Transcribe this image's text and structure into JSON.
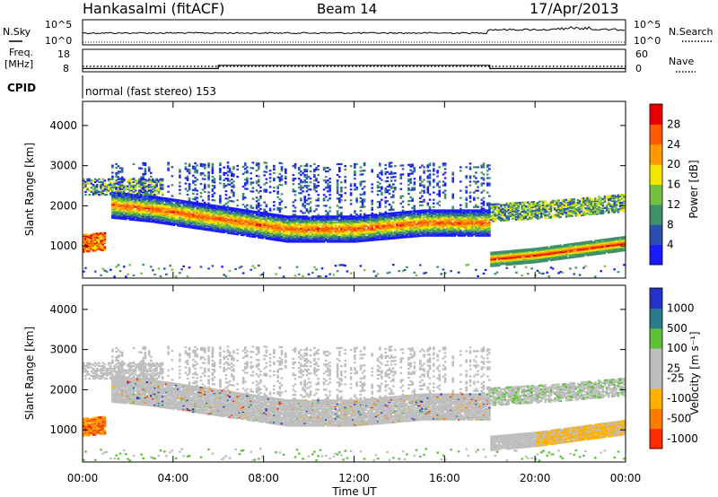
{
  "header": {
    "station": "Hankasalmi (fitACF)",
    "beam": "Beam 14",
    "date": "17/Apr/2013"
  },
  "noise_panel": {
    "left_label": "N.Sky",
    "right_label": "N.Search",
    "left_ticks": [
      "10^5",
      "10^0"
    ],
    "right_ticks": [
      "10^5",
      "10^0"
    ]
  },
  "freq_panel": {
    "left_label_1": "Freq.",
    "left_label_2": "[MHz]",
    "right_label": "Nave",
    "left_ticks": [
      "18",
      "8"
    ],
    "right_ticks": [
      "60",
      "0"
    ]
  },
  "cpid": {
    "label": "CPID",
    "mode": "normal (fast stereo) 153"
  },
  "power_panel": {
    "ylabel": "Slant Range [km]",
    "yticks": [
      "1000",
      "2000",
      "3000",
      "4000"
    ],
    "colorbar_label": "Power [dB]",
    "colorbar_ticks": [
      "4",
      "8",
      "12",
      "16",
      "20",
      "24",
      "28"
    ],
    "colors": [
      "#1a1aff",
      "#2b4fb0",
      "#3f8f68",
      "#74c141",
      "#f5e600",
      "#ff9a00",
      "#ff5a00",
      "#e80000"
    ]
  },
  "velocity_panel": {
    "ylabel": "Slant Range [km]",
    "yticks": [
      "1000",
      "2000",
      "3000",
      "4000"
    ],
    "colorbar_label": "Velocity [m s⁻¹]",
    "colorbar_ticks": [
      "1000",
      "500",
      "100",
      "25",
      "-25",
      "-100",
      "-500",
      "-1000"
    ],
    "colors": [
      "#2432c8",
      "#2a7a8c",
      "#5fc03a",
      "#bebebe",
      "#bebebe",
      "#ffb000",
      "#ff7a00",
      "#ff2a00"
    ]
  },
  "xaxis": {
    "label": "Time UT",
    "ticks": [
      "00:00",
      "04:00",
      "08:00",
      "12:00",
      "16:00",
      "20:00",
      "00:00"
    ]
  },
  "chart_data": {
    "type": "heatmap",
    "x_range_hours": [
      0,
      24
    ],
    "y_range_km": [
      200,
      4600
    ],
    "power_bands": [
      {
        "desc": "main ionospheric echo band",
        "path": [
          [
            1.2,
            2050
          ],
          [
            3,
            1950
          ],
          [
            6,
            1700
          ],
          [
            9,
            1450
          ],
          [
            12,
            1450
          ],
          [
            15,
            1600
          ],
          [
            18,
            1600
          ]
        ]
      },
      {
        "desc": "lower band after 18 UT",
        "path": [
          [
            18,
            700
          ],
          [
            20,
            800
          ],
          [
            22,
            950
          ],
          [
            24,
            1100
          ]
        ]
      },
      {
        "desc": "upper band after 18 UT",
        "path": [
          [
            18,
            1800
          ],
          [
            21,
            1900
          ],
          [
            24,
            2050
          ]
        ]
      },
      {
        "desc": "near-range patch",
        "path": [
          [
            0,
            1100
          ],
          [
            1,
            1150
          ]
        ]
      }
    ],
    "frequency_mhz": {
      "before_06UT": 10,
      "06_to_18UT": 12,
      "after_18UT": 10
    },
    "nave": 20
  }
}
